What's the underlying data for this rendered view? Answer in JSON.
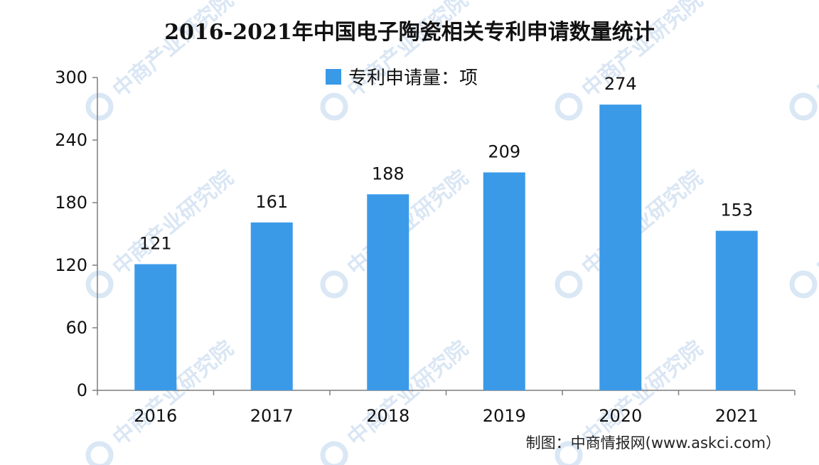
{
  "chart_data": {
    "type": "bar",
    "title": "2016-2021年中国电子陶瓷相关专利申请数量统计",
    "categories": [
      "2016",
      "2017",
      "2018",
      "2019",
      "2020",
      "2021"
    ],
    "series": [
      {
        "name": "专利申请量：项",
        "values": [
          121,
          161,
          188,
          209,
          274,
          153
        ]
      }
    ],
    "ylim": [
      0,
      300
    ],
    "yticks": [
      0,
      60,
      120,
      180,
      240,
      300
    ],
    "xlabel": "",
    "ylabel": "",
    "grid": false,
    "legend": "top-center",
    "bar_color": "#3a9ae8"
  },
  "source": "制图：中商情报网(www.askci.com）",
  "watermark": "中商产业研究院"
}
